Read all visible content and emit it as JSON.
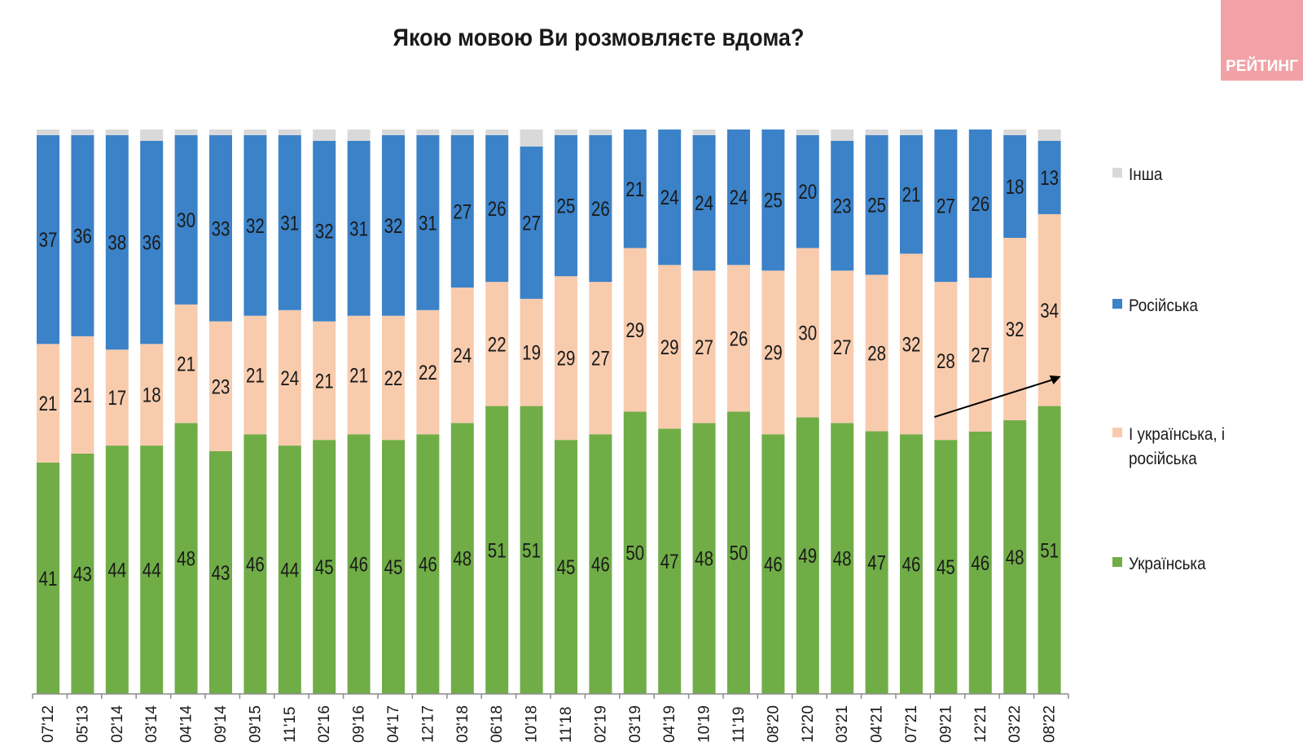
{
  "title": "Якою мовою Ви розмовляєте вдома?",
  "logo": "РЕЙТИНГ",
  "colors": {
    "ukrainian": "#70ad47",
    "both": "#f8cbad",
    "russian": "#3b82c8",
    "other": "#d9d9d9"
  },
  "legend": {
    "other": "Інша",
    "russian": "Російська",
    "both": "І українська, і російська",
    "ukrainian": "Українська"
  },
  "chart_data": {
    "type": "bar",
    "stacked": true,
    "title": "Якою мовою Ви розмовляєте вдома?",
    "ylim": [
      0,
      100
    ],
    "categories": [
      "07'12",
      "05'13",
      "02'14",
      "03'14",
      "04'14",
      "09'14",
      "09'15",
      "11'15",
      "02'16",
      "09'16",
      "04'17",
      "12'17",
      "03'18",
      "06'18",
      "10'18",
      "11'18",
      "02'19",
      "03'19",
      "04'19",
      "10'19",
      "11'19",
      "08'20",
      "12'20",
      "03'21",
      "04'21",
      "07'21",
      "09'21",
      "12'21",
      "03'22",
      "08'22"
    ],
    "series": [
      {
        "key": "ukrainian",
        "name": "Українська",
        "values": [
          41,
          43,
          44,
          44,
          48,
          43,
          46,
          44,
          45,
          46,
          45,
          46,
          48,
          51,
          51,
          45,
          46,
          50,
          47,
          48,
          50,
          46,
          49,
          48,
          47,
          46,
          45,
          46,
          48,
          51
        ]
      },
      {
        "key": "both",
        "name": "І українська, і російська",
        "values": [
          21,
          21,
          17,
          18,
          21,
          23,
          21,
          24,
          21,
          21,
          22,
          22,
          24,
          22,
          19,
          29,
          27,
          29,
          29,
          27,
          26,
          29,
          30,
          27,
          28,
          32,
          28,
          27,
          32,
          34
        ]
      },
      {
        "key": "russian",
        "name": "Російська",
        "values": [
          37,
          36,
          38,
          36,
          30,
          33,
          32,
          31,
          32,
          31,
          32,
          31,
          27,
          26,
          27,
          25,
          26,
          21,
          24,
          24,
          24,
          25,
          20,
          23,
          25,
          21,
          27,
          26,
          18,
          13
        ]
      },
      {
        "key": "other",
        "name": "Інша",
        "values": [
          1,
          1,
          1,
          2,
          1,
          1,
          1,
          1,
          2,
          2,
          1,
          1,
          1,
          1,
          3,
          1,
          1,
          0,
          0,
          1,
          0,
          0,
          1,
          2,
          1,
          1,
          0,
          0,
          1,
          2
        ]
      }
    ],
    "annotation": "arrow from 09'21 to 08'22 (rising Ukrainian share)"
  }
}
